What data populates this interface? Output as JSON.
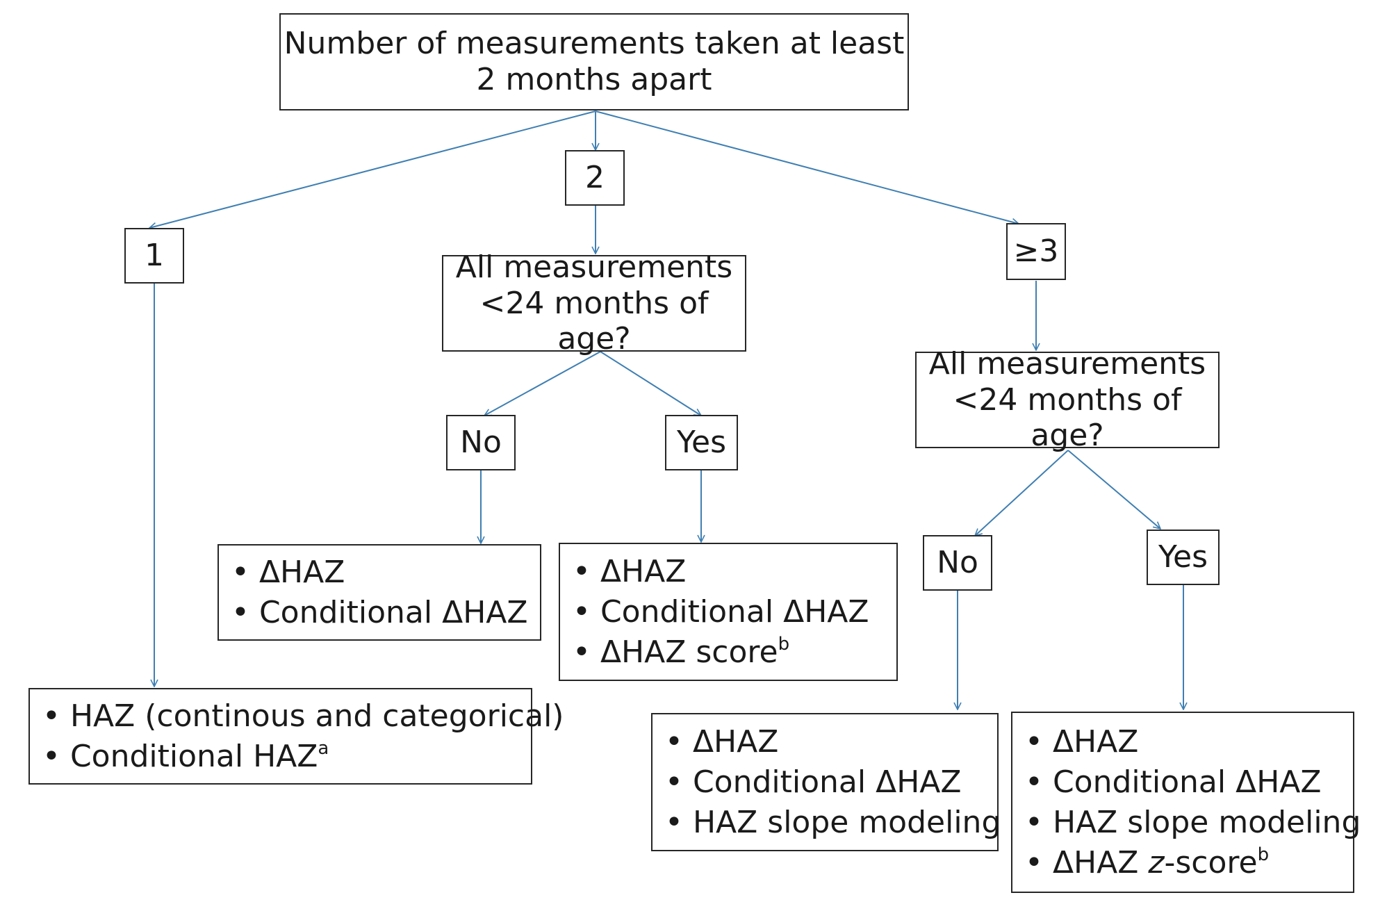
{
  "diagram": {
    "root": {
      "line1": "Number of measurements taken at least",
      "line2": "2 months apart"
    },
    "branch_one": {
      "label": "1",
      "outcomes": {
        "item1": "HAZ (continous and categorical)",
        "item2": "Conditional HAZ",
        "item2_sup": "a"
      }
    },
    "branch_two": {
      "label": "2",
      "question": {
        "line1": "All measurements",
        "line2": "<24 months of age?"
      },
      "no": {
        "label": "No",
        "outcomes": {
          "item1": "ΔHAZ",
          "item2": "Conditional ΔHAZ"
        }
      },
      "yes": {
        "label": "Yes",
        "outcomes": {
          "item1": "ΔHAZ",
          "item2": "Conditional ΔHAZ",
          "item3": "ΔHAZ score",
          "item3_sup": "b"
        }
      }
    },
    "branch_three": {
      "label": "≥3",
      "question": {
        "line1": "All measurements",
        "line2": "<24 months of age?"
      },
      "no": {
        "label": "No",
        "outcomes": {
          "item1": "ΔHAZ",
          "item2": "Conditional ΔHAZ",
          "item3": "HAZ slope modeling"
        }
      },
      "yes": {
        "label": "Yes",
        "outcomes": {
          "item1": "ΔHAZ",
          "item2": "Conditional ΔHAZ",
          "item3": "HAZ slope modeling",
          "item4_prefix": "ΔHAZ ",
          "item4_italic": "z",
          "item4_suffix": "-score",
          "item4_sup": "b"
        }
      }
    },
    "bullet": "•",
    "colors": {
      "arrow": "#3f7fb2",
      "box_border": "#262626",
      "text": "#1a1a1a"
    }
  }
}
